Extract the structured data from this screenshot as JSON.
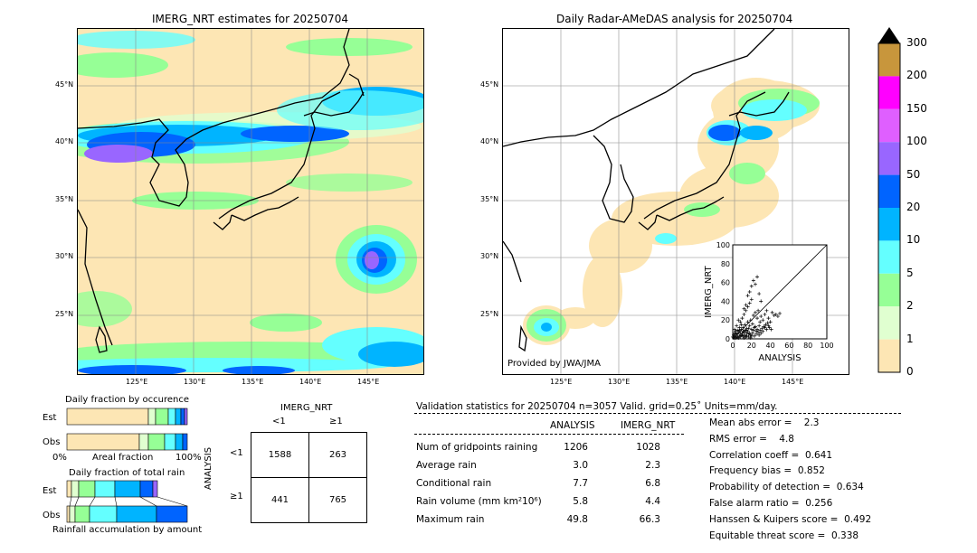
{
  "left_map": {
    "title": "IMERG_NRT estimates for 20250704",
    "lat_labels": [
      "45°N",
      "40°N",
      "35°N",
      "30°N",
      "25°N"
    ],
    "lon_labels": [
      "125°E",
      "130°E",
      "135°E",
      "140°E",
      "145°E"
    ]
  },
  "right_map": {
    "title": "Daily Radar-AMeDAS analysis for 20250704",
    "credit": "Provided by JWA/JMA",
    "lat_labels": [
      "45°N",
      "40°N",
      "35°N",
      "30°N",
      "25°N"
    ],
    "lon_labels": [
      "125°E",
      "130°E",
      "135°E",
      "140°E",
      "145°E"
    ]
  },
  "colorbar": {
    "ticks": [
      "300",
      "200",
      "150",
      "100",
      "50",
      "20",
      "10",
      "5",
      "2",
      "1",
      "0"
    ],
    "colors": [
      "#c8963c",
      "#ff00ff",
      "#df5fff",
      "#9966ff",
      "#0064ff",
      "#00b4ff",
      "#64ffff",
      "#96ff96",
      "#e0ffd0",
      "#fde6b4"
    ],
    "extend_color": "#000000"
  },
  "occurrence": {
    "title": "Daily fraction by occurence",
    "rows": [
      "Est",
      "Obs"
    ],
    "xlabel": "Areal fraction",
    "x_left": "0%",
    "x_right": "100%"
  },
  "total_rain": {
    "title": "Daily fraction of total rain",
    "rows": [
      "Est",
      "Obs"
    ],
    "xlabel": "Rainfall accumulation by amount"
  },
  "contingency": {
    "col_title": "IMERG_NRT",
    "col_labels": [
      "<1",
      "≥1"
    ],
    "row_title": "ANALYSIS",
    "row_labels": [
      "<1",
      "≥1"
    ],
    "cells": [
      [
        "1588",
        "263"
      ],
      [
        "441",
        "765"
      ]
    ]
  },
  "validation": {
    "header": "Validation statistics for 20250704  n=3057 Valid. grid=0.25˚ Units=mm/day.",
    "col_headers": [
      "ANALYSIS",
      "IMERG_NRT"
    ],
    "rows": [
      {
        "label": "Num of gridpoints raining",
        "analysis": "1206",
        "imerg": "1028"
      },
      {
        "label": "Average rain",
        "analysis": "3.0",
        "imerg": "2.3"
      },
      {
        "label": "Conditional rain",
        "analysis": "7.7",
        "imerg": "6.8"
      },
      {
        "label": "Rain volume (mm km²10⁶)",
        "analysis": "5.8",
        "imerg": "4.4"
      },
      {
        "label": "Maximum rain",
        "analysis": "49.8",
        "imerg": "66.3"
      }
    ],
    "scores": [
      "Mean abs error =    2.3",
      "RMS error =    4.8",
      "Correlation coeff =  0.641",
      "Frequency bias =  0.852",
      "Probability of detection =  0.634",
      "False alarm ratio =  0.256",
      "Hanssen & Kuipers score =  0.492",
      "Equitable threat score =  0.338"
    ]
  },
  "chart_data": {
    "type": "scatter",
    "xlabel": "ANALYSIS",
    "ylabel": "IMERG_NRT",
    "xlim": [
      0,
      100
    ],
    "ylim": [
      0,
      100
    ],
    "ticks": [
      0,
      20,
      40,
      60,
      80,
      100
    ],
    "points": [
      [
        1,
        1
      ],
      [
        2,
        3
      ],
      [
        3,
        1
      ],
      [
        4,
        5
      ],
      [
        5,
        2
      ],
      [
        6,
        8
      ],
      [
        7,
        3
      ],
      [
        8,
        6
      ],
      [
        9,
        10
      ],
      [
        10,
        4
      ],
      [
        11,
        12
      ],
      [
        12,
        7
      ],
      [
        13,
        15
      ],
      [
        14,
        9
      ],
      [
        15,
        11
      ],
      [
        16,
        18
      ],
      [
        17,
        5
      ],
      [
        18,
        14
      ],
      [
        19,
        20
      ],
      [
        20,
        10
      ],
      [
        21,
        16
      ],
      [
        22,
        25
      ],
      [
        23,
        12
      ],
      [
        24,
        28
      ],
      [
        25,
        8
      ],
      [
        26,
        22
      ],
      [
        27,
        30
      ],
      [
        28,
        14
      ],
      [
        29,
        18
      ],
      [
        30,
        24
      ],
      [
        32,
        20
      ],
      [
        34,
        26
      ],
      [
        36,
        30
      ],
      [
        38,
        22
      ],
      [
        40,
        18
      ],
      [
        42,
        28
      ],
      [
        44,
        25
      ],
      [
        46,
        26
      ],
      [
        48,
        24
      ],
      [
        50,
        27
      ],
      [
        2,
        10
      ],
      [
        4,
        14
      ],
      [
        6,
        20
      ],
      [
        8,
        18
      ],
      [
        10,
        22
      ],
      [
        12,
        26
      ],
      [
        14,
        30
      ],
      [
        16,
        34
      ],
      [
        18,
        38
      ],
      [
        20,
        42
      ],
      [
        18,
        50
      ],
      [
        20,
        56
      ],
      [
        22,
        62
      ],
      [
        24,
        58
      ],
      [
        16,
        46
      ],
      [
        26,
        66
      ],
      [
        28,
        48
      ],
      [
        30,
        40
      ],
      [
        14,
        36
      ],
      [
        12,
        32
      ],
      [
        3,
        6
      ],
      [
        5,
        9
      ],
      [
        7,
        12
      ],
      [
        9,
        15
      ],
      [
        11,
        8
      ],
      [
        13,
        4
      ],
      [
        15,
        6
      ],
      [
        17,
        2
      ],
      [
        19,
        4
      ],
      [
        21,
        6
      ],
      [
        23,
        3
      ],
      [
        25,
        5
      ],
      [
        27,
        7
      ],
      [
        29,
        9
      ],
      [
        31,
        11
      ],
      [
        33,
        13
      ],
      [
        35,
        15
      ],
      [
        37,
        17
      ],
      [
        39,
        12
      ],
      [
        41,
        10
      ],
      [
        0,
        2
      ],
      [
        1,
        4
      ],
      [
        2,
        6
      ],
      [
        3,
        8
      ],
      [
        4,
        2
      ],
      [
        5,
        5
      ],
      [
        6,
        1
      ],
      [
        7,
        9
      ],
      [
        8,
        2
      ],
      [
        9,
        4
      ],
      [
        10,
        6
      ],
      [
        11,
        3
      ],
      [
        12,
        1
      ],
      [
        13,
        9
      ],
      [
        14,
        2
      ],
      [
        15,
        3
      ],
      [
        16,
        8
      ],
      [
        17,
        11
      ],
      [
        18,
        6
      ],
      [
        19,
        1
      ],
      [
        20,
        3
      ],
      [
        22,
        9
      ],
      [
        24,
        13
      ],
      [
        26,
        10
      ],
      [
        28,
        4
      ],
      [
        30,
        6
      ],
      [
        32,
        8
      ],
      [
        34,
        12
      ],
      [
        36,
        10
      ],
      [
        38,
        14
      ]
    ]
  }
}
